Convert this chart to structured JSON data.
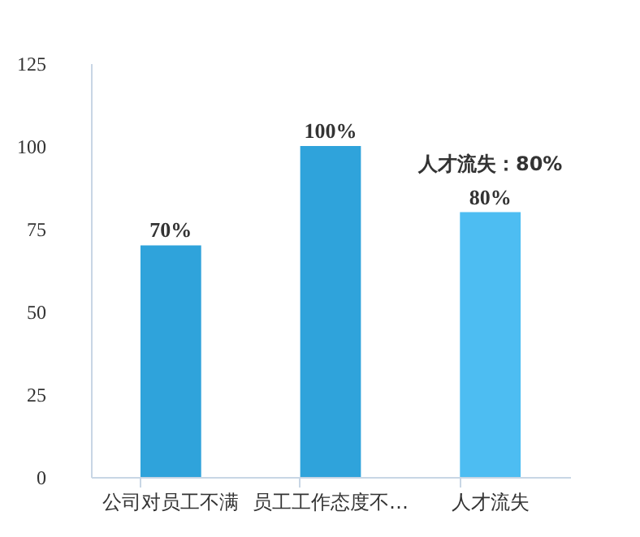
{
  "chart_data": {
    "type": "bar",
    "categories": [
      "公司对员工不满",
      "员工工作态度不…",
      "人才流失"
    ],
    "values": [
      70,
      100,
      80
    ],
    "colors": [
      "#2fa3db",
      "#2fa3db",
      "#4dbdf2"
    ],
    "value_labels": [
      "70%",
      "100%",
      "80%"
    ],
    "ylim": [
      0,
      125
    ],
    "yticks": [
      0,
      25,
      50,
      75,
      100,
      125
    ],
    "grid": false,
    "annotations": [
      {
        "text": "人才流失：80%",
        "x": "人才流失",
        "y": 80
      }
    ]
  }
}
